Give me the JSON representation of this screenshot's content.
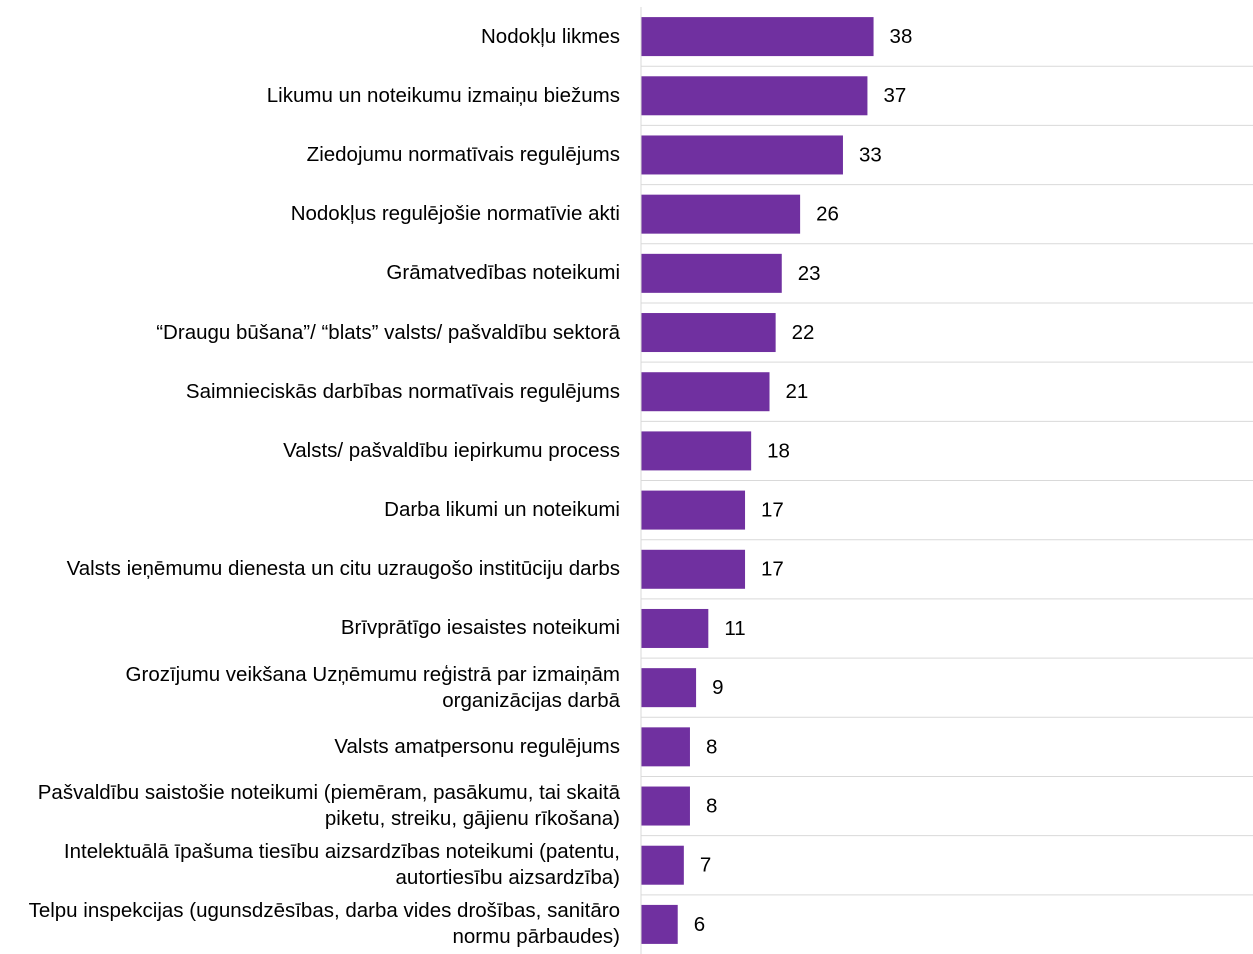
{
  "chart_data": {
    "type": "bar",
    "orientation": "horizontal",
    "categories": [
      "Nodokļu likmes",
      "Likumu un noteikumu izmaiņu biežums",
      "Ziedojumu normatīvais regulējums",
      "Nodokļus regulējošie normatīvie akti",
      "Grāmatvedības noteikumi",
      "“Draugu būšana”/ “blats” valsts/ pašvaldību sektorā",
      "Saimnieciskās darbības normatīvais regulējums",
      "Valsts/ pašvaldību iepirkumu process",
      "Darba likumi un noteikumi",
      "Valsts ieņēmumu dienesta un citu uzraugošo institūciju darbs",
      "Brīvprātīgo iesaistes noteikumi",
      "Grozījumu veikšana Uzņēmumu reģistrā par izmaiņām organizācijas darbā",
      "Valsts amatpersonu regulējums",
      "Pašvaldību saistošie noteikumi (piemēram, pasākumu, tai skaitā piketu, streiku, gājienu rīkošana)",
      "Intelektuālā īpašuma tiesību aizsardzības noteikumi (patentu, autortiesību aizsardzība)",
      "Telpu inspekcijas (ugunsdzēsības, darba vides drošības, sanitāro normu pārbaudes)"
    ],
    "values": [
      38,
      37,
      33,
      26,
      23,
      22,
      21,
      18,
      17,
      17,
      11,
      9,
      8,
      8,
      7,
      6
    ],
    "color": "#7030a0",
    "xlim": [
      0,
      100
    ],
    "grid": true
  }
}
